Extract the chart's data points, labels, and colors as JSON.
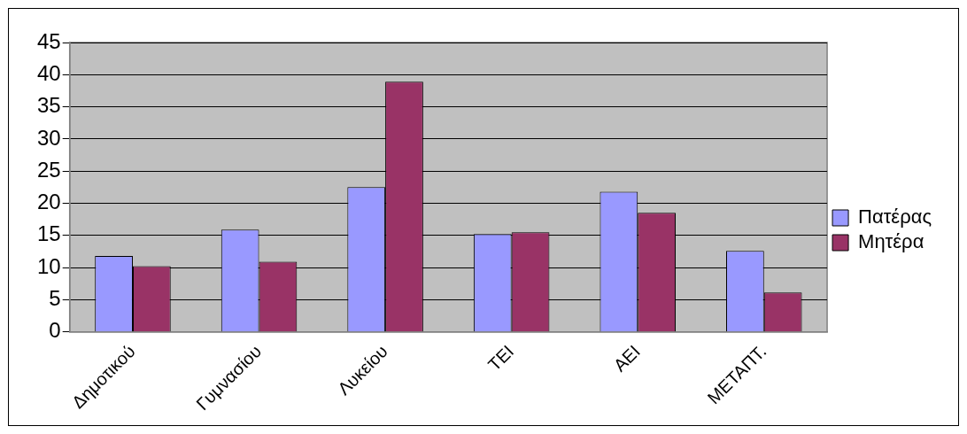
{
  "chart_data": {
    "type": "bar",
    "categories": [
      "Δημοτικού",
      "Γυμνασίου",
      "Λυκείου",
      "ΤΕΙ",
      "ΑΕΙ",
      "ΜΕΤΑΠΤ."
    ],
    "series": [
      {
        "name": "Πατέρας",
        "color": "#9999ff",
        "values": [
          11.8,
          15.9,
          22.5,
          15.2,
          21.8,
          12.6
        ]
      },
      {
        "name": "Μητέρα",
        "color": "#993366",
        "values": [
          10.2,
          10.9,
          38.9,
          15.5,
          18.5,
          6.1
        ]
      }
    ],
    "ylim": [
      0,
      45
    ],
    "yticks": [
      0,
      5,
      10,
      15,
      20,
      25,
      30,
      35,
      40,
      45
    ],
    "grid": "y",
    "legend": "right"
  }
}
